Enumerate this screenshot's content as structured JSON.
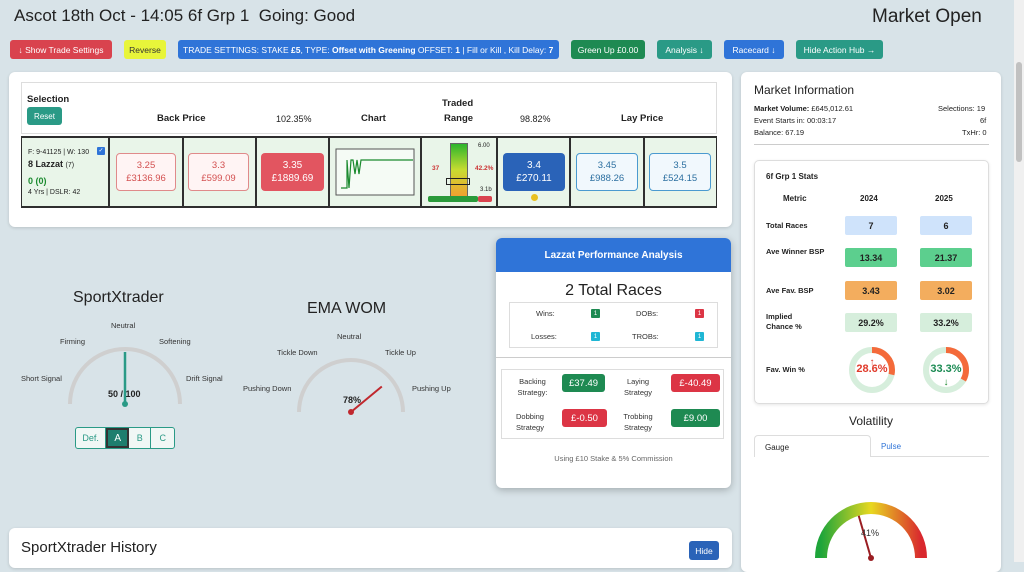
{
  "header": {
    "title": "Ascot 18th Oct - 14:05 6f Grp 1  Going: Good",
    "status": "Market Open"
  },
  "toolbar": {
    "show_settings": "↓ Show Trade Settings",
    "reverse": "Reverse",
    "settings_prefix": "TRADE SETTINGS: STAKE ",
    "stake": "£5",
    "type_label": ", TYPE: ",
    "type_value": "Offset with Greening",
    "offset_label": " OFFSET: ",
    "offset_value": "1",
    "fill_label": " | Fill or Kill , Kill Delay: ",
    "kill_delay": "7",
    "green_up": "Green Up £0.00",
    "analysis": "Analysis ↓",
    "racecard": "Racecard ↓",
    "hide_hub": "Hide Action Hub →"
  },
  "ladder": {
    "selection": "Selection",
    "reset": "Reset",
    "back_price": "Back Price",
    "back_pct": "102.35%",
    "chart": "Chart",
    "traded": "Traded",
    "range": "Range",
    "lay_pct": "98.82%",
    "lay_price": "Lay Price"
  },
  "runner": {
    "form": "F: 9-41125 | W: 130",
    "name": "8 Lazzat",
    "draw": "(7)",
    "pl": "0",
    "pl_sub": "(0)",
    "info": "4 Yrs | DSLR: 42",
    "back": [
      {
        "price": "3.25",
        "amount": "£3136.96"
      },
      {
        "price": "3.3",
        "amount": "£599.09"
      },
      {
        "price": "3.35",
        "amount": "£1889.69"
      }
    ],
    "lay": [
      {
        "price": "3.4",
        "amount": "£270.11"
      },
      {
        "price": "3.45",
        "amount": "£988.26"
      },
      {
        "price": "3.5",
        "amount": "£524.15"
      }
    ],
    "range_high": "6.00",
    "range_low": "3.1b",
    "range_pct": "42.2%",
    "range_left": "37"
  },
  "gauges": {
    "sx_title": "SportXtrader",
    "sx_value": "50 / 100",
    "sx_labels": {
      "neutral": "Neutral",
      "firming": "Firming",
      "softening": "Softening",
      "short": "Short Signal",
      "drift": "Drift Signal"
    },
    "sx_value_num": 50,
    "tabs": [
      "Def.",
      "A",
      "B",
      "C"
    ],
    "ema_title": "EMA WOM",
    "ema_value": "78%",
    "ema_value_num": 78,
    "ema_labels": {
      "neutral": "Neutral",
      "tickle_down": "Tickle Down",
      "tickle_up": "Tickle Up",
      "pushing_down": "Pushing Down",
      "pushing_up": "Pushing Up"
    }
  },
  "performance": {
    "title": "Lazzat Performance Analysis",
    "total": "2 Total Races",
    "wins_label": "Wins:",
    "wins": "1",
    "dobs_label": "DOBs:",
    "dobs": "1",
    "losses_label": "Losses:",
    "losses": "1",
    "trobs_label": "TROBs:",
    "trobs": "1",
    "backing_label": "Backing Strategy:",
    "backing": "£37.49",
    "laying_label": "Laying Strategy",
    "laying": "£-40.49",
    "dobbing_label": "Dobbing Strategy",
    "dobbing": "£-0.50",
    "trobbing_label": "Trobbing Strategy",
    "trobbing": "£9.00",
    "footnote": "Using £10 Stake & 5% Commission"
  },
  "history": {
    "title": "SportXtrader History",
    "hide": "Hide"
  },
  "market": {
    "title": "Market Information",
    "volume_label": "Market Volume:",
    "volume": "£645,012.61",
    "selections": "Selections: 19",
    "starts_label": "Event Starts in:",
    "starts": "00:03:17",
    "dist": "6f",
    "balance": "Balance: 67.19",
    "txhr": "TxHr: 0"
  },
  "stats": {
    "title": "6f Grp 1 Stats",
    "metric": "Metric",
    "y1": "2024",
    "y2": "2025",
    "rows": [
      {
        "label": "Total Races",
        "v1": "7",
        "v2": "6"
      },
      {
        "label": "Ave Winner BSP",
        "v1": "13.34",
        "v2": "21.37"
      },
      {
        "label": "Ave Fav. BSP",
        "v1": "3.43",
        "v2": "3.02"
      },
      {
        "label": "Implied Chance %",
        "v1": "29.2%",
        "v2": "33.2%"
      }
    ],
    "fav_label": "Fav. Win %",
    "fav1": "28.6%",
    "fav1_num": 28.6,
    "fav2": "33.3%",
    "fav2_num": 33.3
  },
  "volatility": {
    "title": "Volatility",
    "tab_gauge": "Gauge",
    "tab_pulse": "Pulse",
    "value": "41%",
    "value_num": 41
  },
  "colors": {
    "green": "#1e8a52",
    "red": "#dc3545",
    "blue": "#2f74d8",
    "teal": "#2a9a86"
  }
}
